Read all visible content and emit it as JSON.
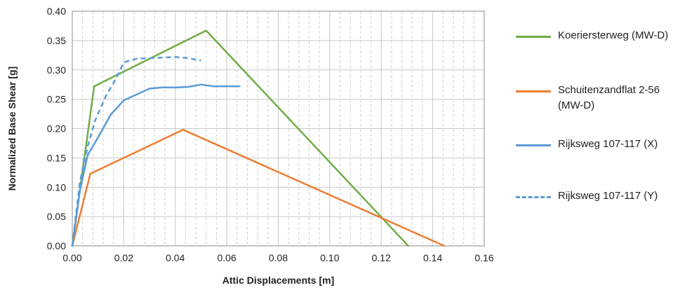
{
  "chart_data": {
    "type": "line",
    "xlabel": "Attic Displacements [m]",
    "ylabel": "Normalized Base Shear [g]",
    "xlim": [
      0,
      0.16
    ],
    "ylim": [
      0,
      0.4
    ],
    "x_ticks": [
      "0.00",
      "0.02",
      "0.04",
      "0.06",
      "0.08",
      "0.10",
      "0.12",
      "0.14",
      "0.16"
    ],
    "y_ticks": [
      "0.00",
      "0.05",
      "0.10",
      "0.15",
      "0.20",
      "0.25",
      "0.30",
      "0.35",
      "0.40"
    ],
    "grid": "major and minor vertical, major horizontal",
    "legend_position": "right",
    "series": [
      {
        "name": "Koeriersterweg (MW-D)",
        "color": "#70ad47",
        "dash": "solid",
        "points": [
          [
            0,
            0
          ],
          [
            0.0085,
            0.272
          ],
          [
            0.052,
            0.367
          ],
          [
            0.1305,
            0
          ]
        ]
      },
      {
        "name": "Schuitenzandflat 2-56 (MW-D)",
        "color": "#ed7d31",
        "dash": "solid",
        "points": [
          [
            0,
            0
          ],
          [
            0.007,
            0.123
          ],
          [
            0.043,
            0.198
          ],
          [
            0.1445,
            0
          ]
        ]
      },
      {
        "name": "Rijksweg 107-117 (X)",
        "color": "#5b9bd5",
        "dash": "solid",
        "points": [
          [
            0,
            0
          ],
          [
            0.003,
            0.095
          ],
          [
            0.006,
            0.155
          ],
          [
            0.01,
            0.185
          ],
          [
            0.015,
            0.224
          ],
          [
            0.02,
            0.248
          ],
          [
            0.025,
            0.258
          ],
          [
            0.03,
            0.268
          ],
          [
            0.035,
            0.27
          ],
          [
            0.04,
            0.27
          ],
          [
            0.045,
            0.271
          ],
          [
            0.05,
            0.275
          ],
          [
            0.055,
            0.272
          ],
          [
            0.06,
            0.272
          ],
          [
            0.065,
            0.272
          ]
        ]
      },
      {
        "name": "Rijksweg 107-117 (Y)",
        "color": "#5b9bd5",
        "dash": "dashed",
        "points": [
          [
            0,
            0
          ],
          [
            0.003,
            0.11
          ],
          [
            0.006,
            0.17
          ],
          [
            0.009,
            0.215
          ],
          [
            0.013,
            0.255
          ],
          [
            0.017,
            0.285
          ],
          [
            0.02,
            0.313
          ],
          [
            0.025,
            0.319
          ],
          [
            0.03,
            0.32
          ],
          [
            0.035,
            0.321
          ],
          [
            0.04,
            0.322
          ],
          [
            0.045,
            0.32
          ],
          [
            0.05,
            0.316
          ]
        ]
      }
    ]
  },
  "legend": [
    {
      "label": "Koeriersterweg (MW-D)",
      "color": "#70ad47",
      "dash": "solid"
    },
    {
      "label": "Schuitenzandflat 2-56 (MW-D)",
      "color": "#ed7d31",
      "dash": "solid"
    },
    {
      "label": "Rijksweg 107-117 (X)",
      "color": "#5b9bd5",
      "dash": "solid"
    },
    {
      "label": "Rijksweg 107-117 (Y)",
      "color": "#5b9bd5",
      "dash": "dashed"
    }
  ]
}
